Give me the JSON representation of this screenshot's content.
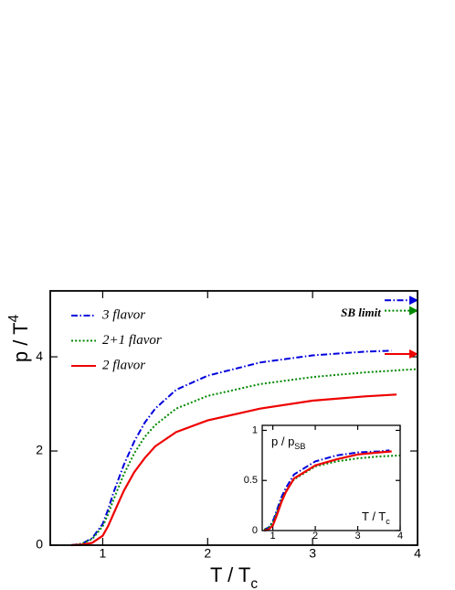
{
  "chart_data": [
    {
      "type": "line",
      "xlabel": "T / T",
      "xlabel_sub": "c",
      "ylabel": "p / T",
      "ylabel_sup": "4",
      "xlim": [
        0.5,
        4
      ],
      "ylim": [
        0,
        5.4
      ],
      "xticks": [
        1,
        2,
        3,
        4
      ],
      "yticks": [
        0,
        2,
        4
      ],
      "legend": "upper left",
      "annotation": "SB limit",
      "series": [
        {
          "name": "3 flavor",
          "color": "#0000dd",
          "dash": "dashdot",
          "sb_limit": 5.2,
          "x": [
            0.7,
            0.8,
            0.9,
            1.0,
            1.05,
            1.1,
            1.2,
            1.3,
            1.4,
            1.5,
            1.7,
            2.0,
            2.5,
            3.0,
            3.5,
            3.75
          ],
          "values": [
            0,
            0.03,
            0.15,
            0.45,
            0.75,
            1.1,
            1.7,
            2.2,
            2.6,
            2.9,
            3.3,
            3.6,
            3.88,
            4.03,
            4.11,
            4.13
          ]
        },
        {
          "name": "2+1 flavor",
          "color": "#008800",
          "dash": "dotted",
          "sb_limit": 4.98,
          "x": [
            0.7,
            0.8,
            0.9,
            1.0,
            1.05,
            1.1,
            1.2,
            1.3,
            1.4,
            1.5,
            1.7,
            2.0,
            2.5,
            3.0,
            3.5,
            4.0
          ],
          "values": [
            0,
            0.03,
            0.13,
            0.4,
            0.65,
            0.95,
            1.5,
            1.95,
            2.3,
            2.55,
            2.9,
            3.17,
            3.42,
            3.57,
            3.67,
            3.74
          ]
        },
        {
          "name": "2 flavor",
          "color": "#ee0000",
          "dash": "solid",
          "sb_limit": 4.06,
          "x": [
            0.7,
            0.8,
            0.9,
            1.0,
            1.05,
            1.1,
            1.2,
            1.3,
            1.4,
            1.5,
            1.7,
            2.0,
            2.5,
            3.0,
            3.5,
            3.8
          ],
          "values": [
            0,
            0.01,
            0.05,
            0.2,
            0.4,
            0.65,
            1.15,
            1.55,
            1.85,
            2.1,
            2.4,
            2.65,
            2.9,
            3.07,
            3.16,
            3.2
          ]
        }
      ]
    },
    {
      "type": "line",
      "xlabel": "T / T",
      "xlabel_sub": "c",
      "ylabel": "p / p",
      "ylabel_sub": "SB",
      "xlim": [
        0.75,
        4
      ],
      "ylim": [
        0,
        1.05
      ],
      "xticks": [
        1,
        2,
        3,
        4
      ],
      "yticks": [
        0,
        0.5,
        1
      ],
      "series": [
        {
          "color": "#0000dd",
          "dash": "dashdot",
          "x": [
            0.8,
            0.9,
            1.0,
            1.1,
            1.2,
            1.3,
            1.5,
            2.0,
            2.5,
            3.0,
            3.5,
            3.75
          ],
          "values": [
            0.01,
            0.03,
            0.09,
            0.21,
            0.33,
            0.42,
            0.56,
            0.69,
            0.75,
            0.78,
            0.79,
            0.8
          ]
        },
        {
          "color": "#008800",
          "dash": "dotted",
          "x": [
            0.8,
            0.9,
            1.0,
            1.1,
            1.2,
            1.3,
            1.5,
            2.0,
            2.5,
            3.0,
            3.5,
            4.0
          ],
          "values": [
            0.01,
            0.03,
            0.08,
            0.19,
            0.3,
            0.39,
            0.51,
            0.64,
            0.69,
            0.72,
            0.74,
            0.75
          ]
        },
        {
          "color": "#ee0000",
          "dash": "solid",
          "x": [
            0.8,
            0.9,
            1.0,
            1.1,
            1.2,
            1.3,
            1.5,
            2.0,
            2.5,
            3.0,
            3.5,
            3.8
          ],
          "values": [
            0,
            0.01,
            0.05,
            0.16,
            0.28,
            0.38,
            0.52,
            0.65,
            0.71,
            0.76,
            0.78,
            0.79
          ]
        }
      ]
    }
  ]
}
